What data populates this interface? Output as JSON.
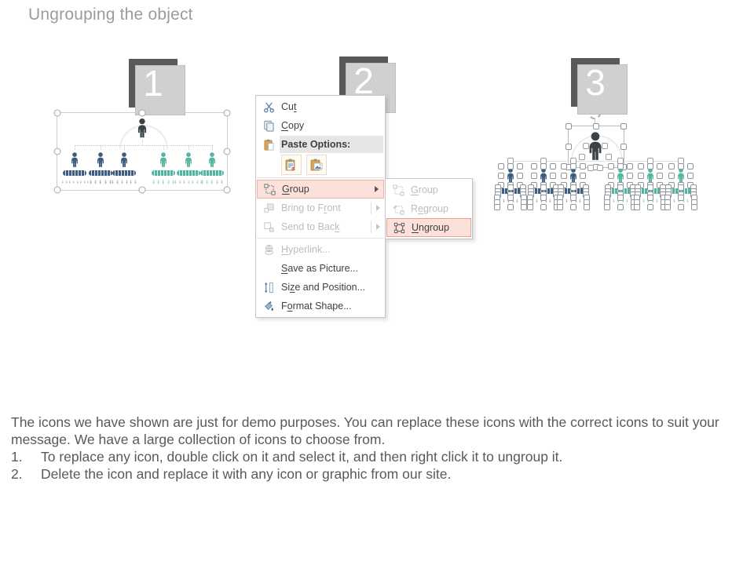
{
  "title": "Ungrouping the object",
  "steps": {
    "one": "1",
    "two": "2",
    "three": "3"
  },
  "context_menu": {
    "items": {
      "cut": {
        "pre": "Cu",
        "key": "t",
        "post": ""
      },
      "copy": {
        "pre": "",
        "key": "C",
        "post": "opy"
      },
      "paste_options": "Paste Options:",
      "group": {
        "pre": "",
        "key": "G",
        "post": "roup"
      },
      "bring_to_front": {
        "pre": "Bring to F",
        "key": "r",
        "post": "ont"
      },
      "send_to_back": {
        "pre": "Send to Bac",
        "key": "k",
        "post": ""
      },
      "hyperlink": {
        "pre": "",
        "key": "H",
        "post": "yperlink..."
      },
      "save_as_picture": {
        "pre": "",
        "key": "S",
        "post": "ave as Picture..."
      },
      "size_and_position": {
        "pre": "Si",
        "key": "z",
        "post": "e and Position..."
      },
      "format_shape": {
        "pre": "F",
        "key": "o",
        "post": "rmat Shape..."
      }
    },
    "submenu": {
      "group": {
        "pre": "",
        "key": "G",
        "post": "roup"
      },
      "regroup": {
        "pre": "R",
        "key": "e",
        "post": "group"
      },
      "ungroup": {
        "pre": "",
        "key": "U",
        "post": "ngroup"
      }
    }
  },
  "notes": {
    "paragraph": "The icons we have shown are just for demo purposes. You can replace these icons with the correct icons to suit your message. We have a large collection of icons to choose from.",
    "list": [
      {
        "num": "1.",
        "text": "To replace any icon, double click on it and select it, and then right click it to ungroup it."
      },
      {
        "num": "2.",
        "text": "Delete the icon and replace it with any  icon or graphic from our site."
      }
    ]
  },
  "org_chart": {
    "top_color": "#3b4245",
    "unit_colors": [
      "navy",
      "navy",
      "navy",
      "teal",
      "teal",
      "teal"
    ],
    "mini_counts": [
      8,
      5,
      6,
      5,
      7,
      5
    ]
  },
  "icons": {
    "cut": "scissors-icon",
    "copy": "copy-icon",
    "paste": "clipboard-icon",
    "paste_keep_text": "clipboard-text-icon",
    "paste_picture": "clipboard-picture-icon",
    "group": "group-icon",
    "regroup": "regroup-icon",
    "ungroup": "ungroup-icon",
    "bring_to_front": "bring-front-icon",
    "send_to_back": "send-back-icon",
    "hyperlink": "hyperlink-icon",
    "size_position": "size-position-icon",
    "format_shape": "format-shape-icon",
    "submenu_arrow": "chevron-right-icon"
  },
  "colors": {
    "navy": "#3e5c7d",
    "teal": "#54b5a1",
    "dark_figure": "#3b4245",
    "badge": "#58595b",
    "title_gray": "#9b9b9b",
    "menu_highlight_bg": "#fbe1da",
    "menu_highlight_border": "#eeb3a5"
  }
}
